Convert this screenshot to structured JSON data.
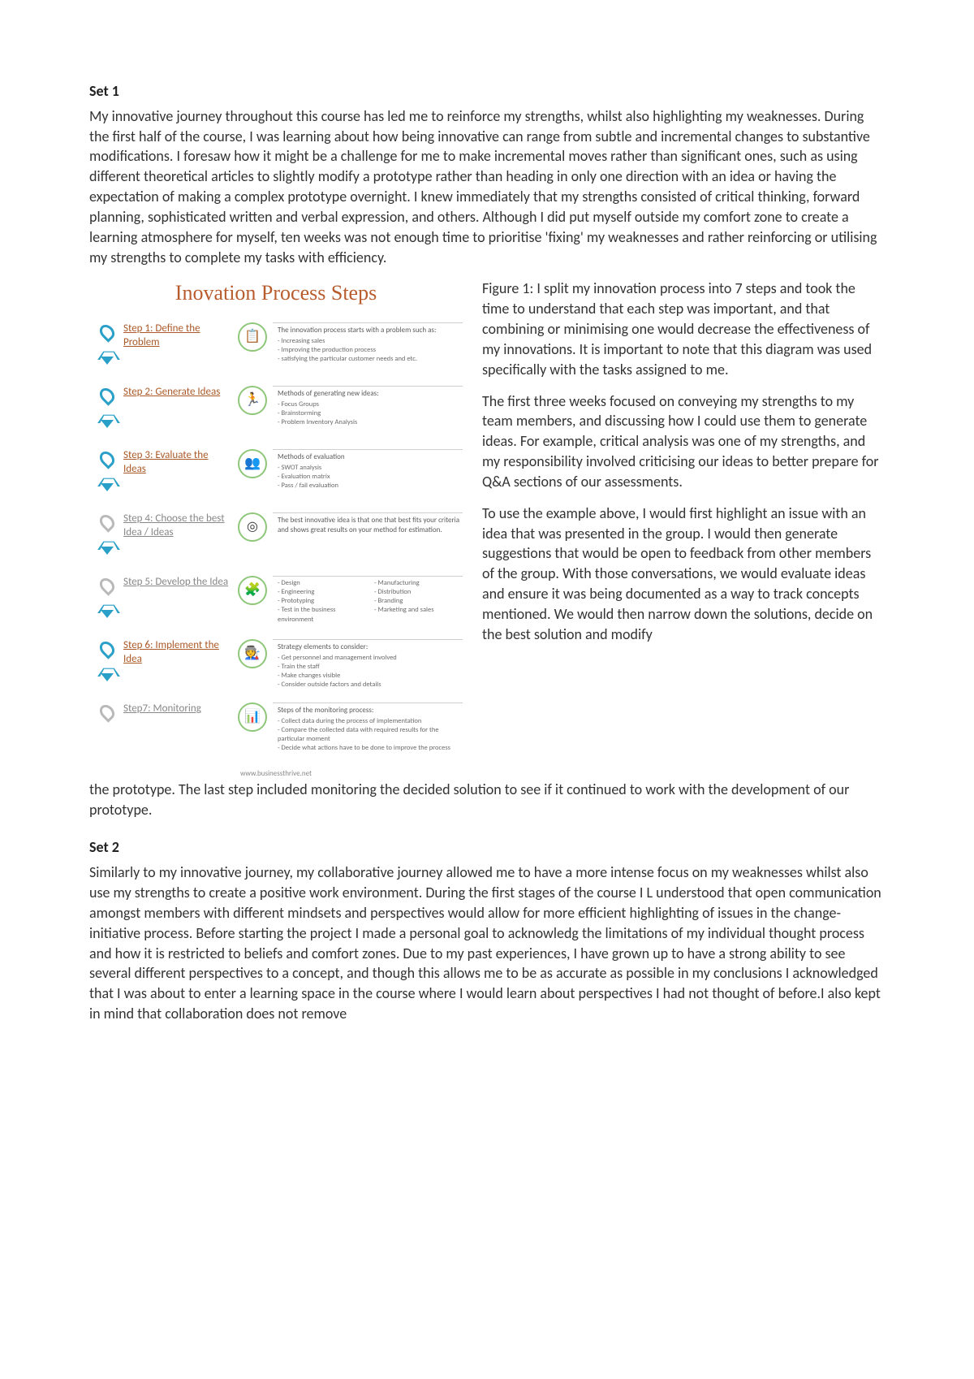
{
  "set1": {
    "heading": "Set 1",
    "para1": "My innovative journey throughout this course has led me to reinforce my strengths, whilst also highlighting my weaknesses. During the first half of the course, I was learning about how being innovative can range from subtle and incremental changes to substantive modifications. I foresaw how it might be a challenge for me to make incremental moves rather than significant ones, such as using different theoretical articles to slightly modify a prototype rather than heading in only one direction with an idea or having the expectation of making a complex prototype overnight. I knew immediately that my strengths consisted of critical thinking, forward planning, sophisticated written and verbal expression, and others. Although I did put myself outside my comfort zone to create a learning atmosphere for myself, ten weeks was not enough time to prioritise 'fixing' my weaknesses and rather reinforcing or utilising my strengths to complete my tasks with efficiency."
  },
  "diagram": {
    "title": "Inovation Process Steps",
    "accent_color": "#b85c2e",
    "marker_color": "#2aa0c8",
    "icon_border_color": "#8fc77a",
    "source": "www.businessthrive.net",
    "steps": [
      {
        "label": "Step 1: Define the Problem",
        "icon": "📋",
        "title": "The innovation process starts with a problem such as:",
        "bullets": [
          "Increasing sales",
          "Improving the production process",
          "satisfying the particular customer needs and etc."
        ]
      },
      {
        "label": "Step 2: Generate Ideas",
        "icon": "🏃",
        "title": "Methods of generating new ideas:",
        "bullets": [
          "Focus Groups",
          "Brainstorming",
          "Problem Inventory Analysis"
        ]
      },
      {
        "label": "Step 3: Evaluate the Ideas",
        "icon": "👥",
        "title": "Methods of evaluation",
        "bullets": [
          "SWOT analysis",
          "Evaluation matrix",
          "Pass / fail evaluation"
        ]
      },
      {
        "label": "Step 4: Choose the best Idea / Ideas",
        "icon": "◎",
        "title": "The best innovative idea is that one that best fits your criteria and shows great results on your method for estimation.",
        "bullets": []
      },
      {
        "label": "Step 5: Develop the Idea",
        "icon": "🧩",
        "title": "",
        "bullets_cols": [
          [
            "Design",
            "Engineering",
            "Prototyping",
            "Test in the business environment"
          ],
          [
            "Manufacturing",
            "Distribution",
            "Branding",
            "Marketing and sales"
          ]
        ]
      },
      {
        "label": "Step 6: Implement the Idea",
        "icon": "🧑‍🏭",
        "title": "Strategy elements to consider:",
        "bullets": [
          "Get personnel and management involved",
          "Train the staff",
          "Make changes visible",
          "Consider outside factors and details"
        ]
      },
      {
        "label": "Step7: Monitoring",
        "icon": "📊",
        "title": "Steps of the monitoring process:",
        "bullets": [
          "Collect data during the process of implementation",
          "Compare the collected data with required results for the particular moment",
          "Decide what actions have to be done to improve the process"
        ]
      }
    ]
  },
  "figure_caption": {
    "p1": "Figure 1: I split my innovation process into 7 steps and took the time to understand that each step was important, and that combining or minimising one would decrease the effectiveness of my innovations. It is important to note that this diagram was used specifically with the tasks assigned to me.",
    "p2": "The first three weeks focused on conveying my strengths to my team members, and discussing how I could use them to generate ideas. For example, critical analysis was one of my strengths, and my responsibility involved criticising our ideas to better prepare for Q&A sections of our assessments.",
    "p3": "To use the example above, I would first highlight an issue with an idea that was presented in the group. I would then generate suggestions that would be open to feedback from other members of the group. With those conversations, we would evaluate ideas and ensure it was being documented as a way to track concepts mentioned. We would then narrow down the solutions, decide on the best solution and modify"
  },
  "after_diagram_para": "the prototype. The last step included monitoring the decided solution to see if it continued to work with the development of our prototype.",
  "set2": {
    "heading": "Set 2",
    "para1": "Similarly to my innovative journey, my collaborative journey allowed me to have a more intense focus on my weaknesses whilst also use my strengths to create a positive work environment. During the first stages of the course I L understood that open communication amongst members with different mindsets and perspectives would allow for more efficient highlighting of issues in the change-initiative process. Before starting the project I made a personal goal to acknowledg the limitations of my individual thought process and how it is restricted to beliefs and comfort zones. Due to my past experiences, I have grown up to have a strong ability to see several different perspectives to a concept, and though this allows me to be as accurate as possible in my conclusions I acknowledged that I was about to enter a learning space in the course where I would learn about perspectives I had not thought of before.I also kept in mind that collaboration does not remove"
  }
}
